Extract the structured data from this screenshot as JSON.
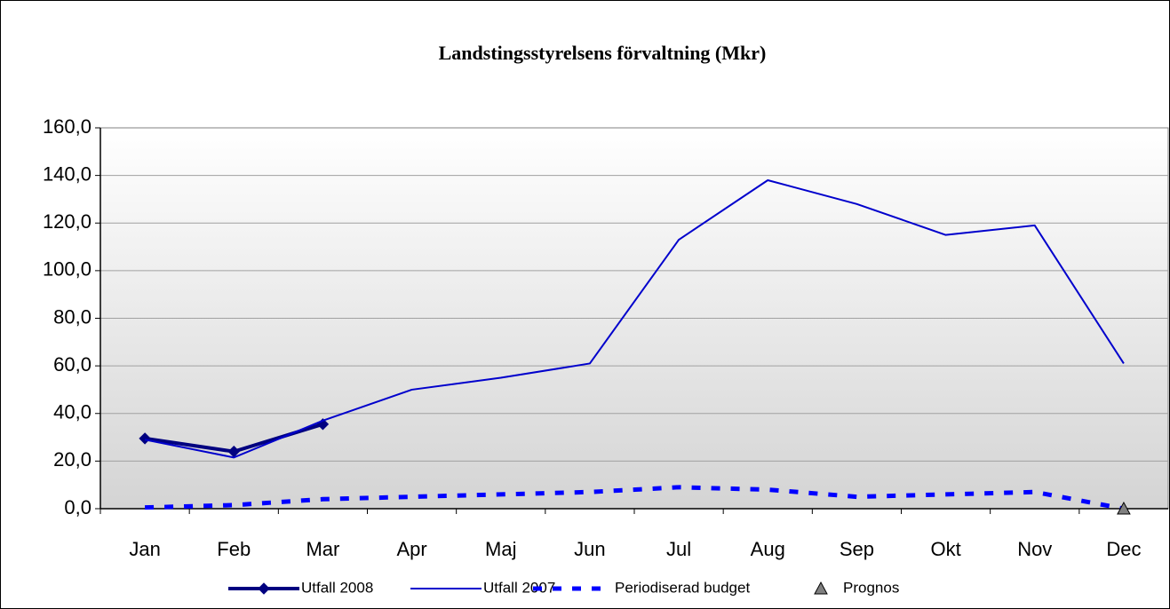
{
  "chart_data": {
    "type": "line",
    "title": "Landstingsstyrelsens förvaltning (Mkr)",
    "categories": [
      "Jan",
      "Feb",
      "Mar",
      "Apr",
      "Maj",
      "Jun",
      "Jul",
      "Aug",
      "Sep",
      "Okt",
      "Nov",
      "Dec"
    ],
    "series": [
      {
        "name": "Utfall 2008",
        "color": "#000080",
        "width": 4,
        "marker": "diamond",
        "line": true,
        "dash": false,
        "values": [
          29.5,
          24,
          35.5,
          null,
          null,
          null,
          null,
          null,
          null,
          null,
          null,
          null
        ]
      },
      {
        "name": "Utfall 2007",
        "color": "#0000cc",
        "width": 2,
        "marker": "none",
        "line": true,
        "dash": false,
        "values": [
          29,
          21.5,
          37,
          50,
          55,
          61,
          113,
          138,
          128,
          115,
          119,
          61
        ]
      },
      {
        "name": "Periodiserad budget",
        "color": "#0000ff",
        "width": 5,
        "marker": "none",
        "line": true,
        "dash": true,
        "values": [
          0.5,
          1.5,
          4,
          5,
          6,
          7,
          9,
          8,
          5,
          6,
          7,
          0
        ]
      },
      {
        "name": "Prognos",
        "color": "#808080",
        "width": 0,
        "marker": "triangle",
        "line": false,
        "dash": false,
        "values": [
          null,
          null,
          null,
          null,
          null,
          null,
          null,
          null,
          null,
          null,
          null,
          0
        ]
      }
    ],
    "ylim": [
      0,
      160
    ],
    "yticks": [
      {
        "value": 0,
        "label": "0,0"
      },
      {
        "value": 20,
        "label": "20,0"
      },
      {
        "value": 40,
        "label": "40,0"
      },
      {
        "value": 60,
        "label": "60,0"
      },
      {
        "value": 80,
        "label": "80,0"
      },
      {
        "value": 100,
        "label": "100,0"
      },
      {
        "value": 120,
        "label": "120,0"
      },
      {
        "value": 140,
        "label": "140,0"
      },
      {
        "value": 160,
        "label": "160,0"
      }
    ],
    "grid": true,
    "legend": "bottom"
  }
}
